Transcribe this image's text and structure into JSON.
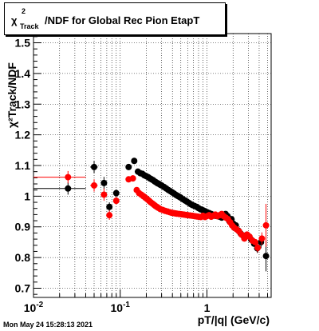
{
  "title": {
    "chi": "χ",
    "sup": "2",
    "sub": "Track",
    "rest": "/NDF for Global Rec Pion EtapT"
  },
  "timestamp": "Mon May 24 15:28:13 2021",
  "chart_data": {
    "type": "scatter",
    "title": "χ²Track/NDF for Global Rec Pion EtapT",
    "xlabel": "pT/|q| (GeV/c)",
    "ylabel": "χ²Track/NDF",
    "x_scale": "log",
    "xlim": [
      0.01,
      5.5
    ],
    "ylim": [
      0.67,
      1.53
    ],
    "grid": true,
    "x_tick_labels": [
      {
        "value": 0.01,
        "base": "10",
        "exp": "-2"
      },
      {
        "value": 0.1,
        "base": "10",
        "exp": "-1"
      },
      {
        "value": 1,
        "base": "1",
        "exp": ""
      }
    ],
    "y_ticks": [
      0.7,
      0.8,
      0.9,
      1.0,
      1.1,
      1.2,
      1.3,
      1.4,
      1.5
    ],
    "y_tick_labels": [
      "0.7",
      "0.8",
      "0.9",
      "1",
      "1.1",
      "1.2",
      "1.3",
      "1.4",
      "1.5"
    ],
    "series": [
      {
        "color": "#000000",
        "points": [
          {
            "x": 0.025,
            "y": 1.025,
            "xlo": 0.01,
            "xhi": 0.04,
            "err": 0.02
          },
          {
            "x": 0.05,
            "y": 1.095,
            "xlo": 0.045,
            "xhi": 0.055,
            "err": 0.02
          },
          {
            "x": 0.065,
            "y": 1.043,
            "xlo": 0.06,
            "xhi": 0.07,
            "err": 0.02
          },
          {
            "x": 0.075,
            "y": 0.965,
            "xlo": 0.072,
            "xhi": 0.078,
            "err": 0.015
          },
          {
            "x": 0.09,
            "y": 1.01,
            "xlo": 0.085,
            "xhi": 0.095,
            "err": 0.012
          },
          {
            "x": 0.125,
            "y": 1.095,
            "err": 0.01
          },
          {
            "x": 0.145,
            "y": 1.115,
            "err": 0.01
          },
          {
            "x": 0.16,
            "y": 1.08
          },
          {
            "x": 0.17,
            "y": 1.075
          },
          {
            "x": 0.18,
            "y": 1.073
          },
          {
            "x": 0.19,
            "y": 1.068
          },
          {
            "x": 0.2,
            "y": 1.065
          },
          {
            "x": 0.21,
            "y": 1.062
          },
          {
            "x": 0.22,
            "y": 1.058
          },
          {
            "x": 0.23,
            "y": 1.055
          },
          {
            "x": 0.24,
            "y": 1.052
          },
          {
            "x": 0.25,
            "y": 1.048
          },
          {
            "x": 0.26,
            "y": 1.045
          },
          {
            "x": 0.27,
            "y": 1.042
          },
          {
            "x": 0.28,
            "y": 1.04
          },
          {
            "x": 0.29,
            "y": 1.037
          },
          {
            "x": 0.3,
            "y": 1.035
          },
          {
            "x": 0.32,
            "y": 1.03
          },
          {
            "x": 0.34,
            "y": 1.025
          },
          {
            "x": 0.36,
            "y": 1.02
          },
          {
            "x": 0.38,
            "y": 1.016
          },
          {
            "x": 0.4,
            "y": 1.012
          },
          {
            "x": 0.42,
            "y": 1.008
          },
          {
            "x": 0.44,
            "y": 1.004
          },
          {
            "x": 0.46,
            "y": 1.001
          },
          {
            "x": 0.48,
            "y": 0.998
          },
          {
            "x": 0.5,
            "y": 0.995
          },
          {
            "x": 0.53,
            "y": 0.99
          },
          {
            "x": 0.56,
            "y": 0.986
          },
          {
            "x": 0.59,
            "y": 0.982
          },
          {
            "x": 0.62,
            "y": 0.978
          },
          {
            "x": 0.65,
            "y": 0.974
          },
          {
            "x": 0.68,
            "y": 0.971
          },
          {
            "x": 0.72,
            "y": 0.968
          },
          {
            "x": 0.76,
            "y": 0.965
          },
          {
            "x": 0.8,
            "y": 0.961
          },
          {
            "x": 0.85,
            "y": 0.957
          },
          {
            "x": 0.9,
            "y": 0.954
          },
          {
            "x": 0.95,
            "y": 0.951
          },
          {
            "x": 1.0,
            "y": 0.948
          },
          {
            "x": 1.06,
            "y": 0.945
          },
          {
            "x": 1.12,
            "y": 0.942
          },
          {
            "x": 1.18,
            "y": 0.939
          },
          {
            "x": 1.25,
            "y": 0.936
          },
          {
            "x": 1.32,
            "y": 0.935
          },
          {
            "x": 1.4,
            "y": 0.933
          },
          {
            "x": 1.48,
            "y": 0.93
          },
          {
            "x": 1.56,
            "y": 0.937
          },
          {
            "x": 1.64,
            "y": 0.942
          },
          {
            "x": 1.73,
            "y": 0.935
          },
          {
            "x": 1.82,
            "y": 0.918
          },
          {
            "x": 1.92,
            "y": 0.925
          },
          {
            "x": 2.02,
            "y": 0.91
          },
          {
            "x": 2.15,
            "y": 0.905
          },
          {
            "x": 2.3,
            "y": 0.888
          },
          {
            "x": 2.45,
            "y": 0.878
          },
          {
            "x": 2.6,
            "y": 0.872
          },
          {
            "x": 2.8,
            "y": 0.87
          },
          {
            "x": 3.0,
            "y": 0.87
          },
          {
            "x": 3.25,
            "y": 0.858
          },
          {
            "x": 3.5,
            "y": 0.845
          },
          {
            "x": 3.8,
            "y": 0.83,
            "err": 0.015
          },
          {
            "x": 4.2,
            "y": 0.85,
            "err": 0.02
          },
          {
            "x": 4.8,
            "y": 0.805,
            "err": 0.05
          }
        ]
      },
      {
        "color": "#ff0000",
        "points": [
          {
            "x": 0.025,
            "y": 1.062,
            "xlo": 0.01,
            "xhi": 0.04,
            "err": 0.02
          },
          {
            "x": 0.05,
            "y": 1.035,
            "xlo": 0.045,
            "xhi": 0.055,
            "err": 0.02
          },
          {
            "x": 0.065,
            "y": 1.005,
            "xlo": 0.06,
            "xhi": 0.07,
            "err": 0.02
          },
          {
            "x": 0.075,
            "y": 0.938,
            "xlo": 0.072,
            "xhi": 0.078,
            "err": 0.015
          },
          {
            "x": 0.09,
            "y": 0.985,
            "xlo": 0.085,
            "xhi": 0.095,
            "err": 0.012
          },
          {
            "x": 0.125,
            "y": 1.055,
            "err": 0.01
          },
          {
            "x": 0.14,
            "y": 1.058,
            "err": 0.01
          },
          {
            "x": 0.155,
            "y": 1.02
          },
          {
            "x": 0.165,
            "y": 1.01
          },
          {
            "x": 0.175,
            "y": 1.005
          },
          {
            "x": 0.185,
            "y": 1.0
          },
          {
            "x": 0.195,
            "y": 0.995
          },
          {
            "x": 0.205,
            "y": 0.99
          },
          {
            "x": 0.215,
            "y": 0.985
          },
          {
            "x": 0.225,
            "y": 0.98
          },
          {
            "x": 0.235,
            "y": 0.976
          },
          {
            "x": 0.245,
            "y": 0.972
          },
          {
            "x": 0.255,
            "y": 0.968
          },
          {
            "x": 0.265,
            "y": 0.965
          },
          {
            "x": 0.275,
            "y": 0.962
          },
          {
            "x": 0.29,
            "y": 0.958
          },
          {
            "x": 0.31,
            "y": 0.955
          },
          {
            "x": 0.33,
            "y": 0.952
          },
          {
            "x": 0.35,
            "y": 0.95
          },
          {
            "x": 0.37,
            "y": 0.948
          },
          {
            "x": 0.39,
            "y": 0.946
          },
          {
            "x": 0.41,
            "y": 0.945
          },
          {
            "x": 0.43,
            "y": 0.944
          },
          {
            "x": 0.45,
            "y": 0.943
          },
          {
            "x": 0.48,
            "y": 0.942
          },
          {
            "x": 0.51,
            "y": 0.941
          },
          {
            "x": 0.54,
            "y": 0.94
          },
          {
            "x": 0.57,
            "y": 0.939
          },
          {
            "x": 0.6,
            "y": 0.938
          },
          {
            "x": 0.64,
            "y": 0.937
          },
          {
            "x": 0.68,
            "y": 0.936
          },
          {
            "x": 0.72,
            "y": 0.935
          },
          {
            "x": 0.76,
            "y": 0.934
          },
          {
            "x": 0.8,
            "y": 0.933
          },
          {
            "x": 0.85,
            "y": 0.932
          },
          {
            "x": 0.9,
            "y": 0.936
          },
          {
            "x": 0.95,
            "y": 0.932
          },
          {
            "x": 1.0,
            "y": 0.935
          },
          {
            "x": 1.06,
            "y": 0.938
          },
          {
            "x": 1.12,
            "y": 0.933
          },
          {
            "x": 1.18,
            "y": 0.936
          },
          {
            "x": 1.25,
            "y": 0.94
          },
          {
            "x": 1.32,
            "y": 0.935
          },
          {
            "x": 1.4,
            "y": 0.938
          },
          {
            "x": 1.48,
            "y": 0.942
          },
          {
            "x": 1.56,
            "y": 0.935
          },
          {
            "x": 1.65,
            "y": 0.93
          },
          {
            "x": 1.75,
            "y": 0.925
          },
          {
            "x": 1.85,
            "y": 0.915
          },
          {
            "x": 1.95,
            "y": 0.905
          },
          {
            "x": 2.05,
            "y": 0.898
          },
          {
            "x": 2.2,
            "y": 0.892
          },
          {
            "x": 2.35,
            "y": 0.885
          },
          {
            "x": 2.5,
            "y": 0.875
          },
          {
            "x": 2.7,
            "y": 0.862
          },
          {
            "x": 2.9,
            "y": 0.875
          },
          {
            "x": 3.1,
            "y": 0.868
          },
          {
            "x": 3.35,
            "y": 0.855
          },
          {
            "x": 3.6,
            "y": 0.85
          },
          {
            "x": 3.85,
            "y": 0.832,
            "err": 0.015
          },
          {
            "x": 4.3,
            "y": 0.862,
            "err": 0.02
          },
          {
            "x": 4.8,
            "y": 0.905,
            "err": 0.07
          }
        ]
      }
    ]
  }
}
